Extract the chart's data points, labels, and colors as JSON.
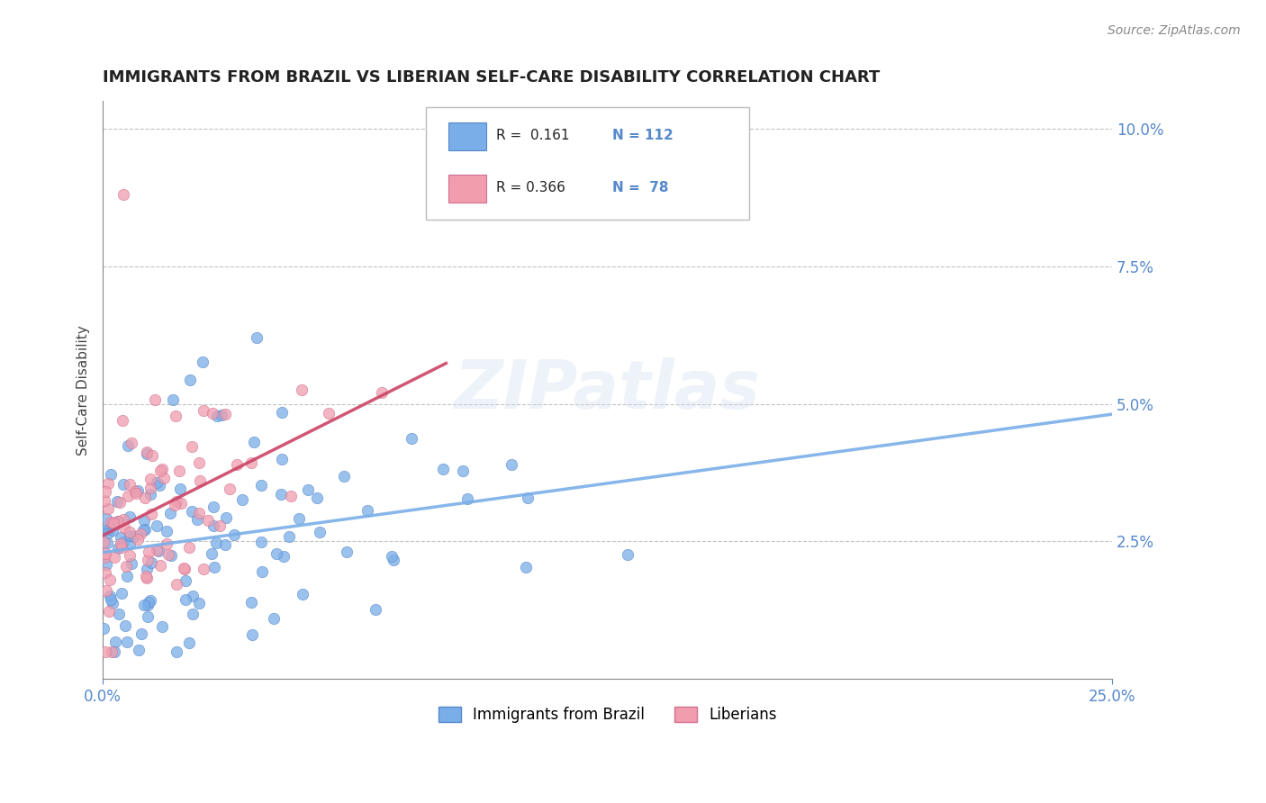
{
  "title": "IMMIGRANTS FROM BRAZIL VS LIBERIAN SELF-CARE DISABILITY CORRELATION CHART",
  "source": "Source: ZipAtlas.com",
  "ylabel": "Self-Care Disability",
  "xlim": [
    0.0,
    0.25
  ],
  "ylim": [
    0.0,
    0.105
  ],
  "yticks_right": [
    0.025,
    0.05,
    0.075,
    0.1
  ],
  "ytick_labels_right": [
    "2.5%",
    "5.0%",
    "7.5%",
    "10.0%"
  ],
  "legend_r1": "R =  0.161",
  "legend_n1": "N = 112",
  "legend_r2": "R = 0.366",
  "legend_n2": "N =  78",
  "blue_color": "#7aaee8",
  "blue_edge": "#5588cc",
  "pink_color": "#f09dae",
  "pink_edge": "#d07090",
  "trend_blue": "#7aaee8",
  "trend_pink": "#cc4466",
  "watermark": "ZIPatlas",
  "tick_color": "#5588cc",
  "background_color": "#ffffff",
  "grid_color": "#aaaaaa",
  "title_color": "#222222",
  "source_color": "#888888"
}
